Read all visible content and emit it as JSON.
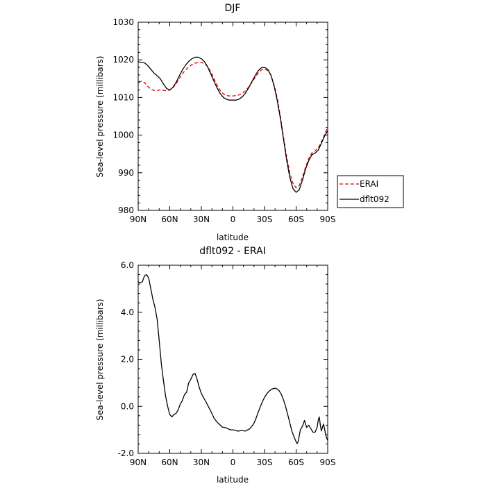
{
  "chart_data": [
    {
      "type": "line",
      "title": "DJF",
      "xlabel": "latitude",
      "ylabel": "Sea-level pressure (millibars)",
      "x_ticks": [
        "90N",
        "60N",
        "30N",
        "0",
        "30S",
        "60S",
        "90S"
      ],
      "xlim": [
        -90,
        90
      ],
      "ylim": [
        980,
        1030
      ],
      "y_ticks": [
        "980",
        "990",
        "1000",
        "1010",
        "1020",
        "1030"
      ],
      "grid": false,
      "legend_position": "right",
      "series": [
        {
          "name": "ERAI",
          "style": "dashed",
          "color": "#e00000",
          "points": [
            [
              -90,
              1014.2
            ],
            [
              -87,
              1014.3
            ],
            [
              -84,
              1014.0
            ],
            [
              -81,
              1013.0
            ],
            [
              -78,
              1012.2
            ],
            [
              -75,
              1011.9
            ],
            [
              -72,
              1011.9
            ],
            [
              -69,
              1012.0
            ],
            [
              -66,
              1011.9
            ],
            [
              -63,
              1011.8
            ],
            [
              -60,
              1012.0
            ],
            [
              -57,
              1012.6
            ],
            [
              -54,
              1013.6
            ],
            [
              -51,
              1015.0
            ],
            [
              -48,
              1016.3
            ],
            [
              -45,
              1017.3
            ],
            [
              -42,
              1018.1
            ],
            [
              -39,
              1018.7
            ],
            [
              -36,
              1019.1
            ],
            [
              -33,
              1019.3
            ],
            [
              -30,
              1019.3
            ],
            [
              -27,
              1019.0
            ],
            [
              -24,
              1018.2
            ],
            [
              -21,
              1016.8
            ],
            [
              -18,
              1015.0
            ],
            [
              -15,
              1013.2
            ],
            [
              -12,
              1011.8
            ],
            [
              -9,
              1010.9
            ],
            [
              -6,
              1010.5
            ],
            [
              -3,
              1010.4
            ],
            [
              0,
              1010.4
            ],
            [
              3,
              1010.5
            ],
            [
              6,
              1010.7
            ],
            [
              9,
              1011.1
            ],
            [
              12,
              1011.8
            ],
            [
              15,
              1012.8
            ],
            [
              18,
              1014.0
            ],
            [
              21,
              1015.3
            ],
            [
              24,
              1016.5
            ],
            [
              27,
              1017.3
            ],
            [
              30,
              1017.5
            ],
            [
              33,
              1017.2
            ],
            [
              36,
              1016.0
            ],
            [
              39,
              1013.5
            ],
            [
              42,
              1010.0
            ],
            [
              45,
              1005.0
            ],
            [
              48,
              999.5
            ],
            [
              51,
              994.2
            ],
            [
              54,
              990.0
            ],
            [
              57,
              987.2
            ],
            [
              60,
              986.0
            ],
            [
              63,
              986.6
            ],
            [
              66,
              988.8
            ],
            [
              69,
              991.5
            ],
            [
              72,
              993.8
            ],
            [
              75,
              995.3
            ],
            [
              78,
              995.8
            ],
            [
              81,
              996.6
            ],
            [
              84,
              998.2
            ],
            [
              87,
              1000.0
            ],
            [
              90,
              1002.2
            ]
          ]
        },
        {
          "name": "dflt092",
          "style": "solid",
          "color": "#000000",
          "points": [
            [
              -90,
              1019.5
            ],
            [
              -87,
              1019.3
            ],
            [
              -84,
              1019.2
            ],
            [
              -81,
              1018.5
            ],
            [
              -78,
              1017.5
            ],
            [
              -75,
              1016.5
            ],
            [
              -72,
              1015.8
            ],
            [
              -69,
              1015.0
            ],
            [
              -66,
              1013.6
            ],
            [
              -63,
              1012.4
            ],
            [
              -60,
              1012.0
            ],
            [
              -57,
              1012.7
            ],
            [
              -54,
              1014.0
            ],
            [
              -51,
              1015.7
            ],
            [
              -48,
              1017.3
            ],
            [
              -45,
              1018.6
            ],
            [
              -42,
              1019.6
            ],
            [
              -39,
              1020.3
            ],
            [
              -36,
              1020.7
            ],
            [
              -33,
              1020.7
            ],
            [
              -30,
              1020.3
            ],
            [
              -27,
              1019.5
            ],
            [
              -24,
              1018.1
            ],
            [
              -21,
              1016.3
            ],
            [
              -18,
              1014.3
            ],
            [
              -15,
              1012.5
            ],
            [
              -12,
              1011.0
            ],
            [
              -9,
              1010.0
            ],
            [
              -6,
              1009.5
            ],
            [
              -3,
              1009.3
            ],
            [
              0,
              1009.3
            ],
            [
              3,
              1009.3
            ],
            [
              6,
              1009.6
            ],
            [
              9,
              1010.2
            ],
            [
              12,
              1011.2
            ],
            [
              15,
              1012.6
            ],
            [
              18,
              1014.2
            ],
            [
              21,
              1015.8
            ],
            [
              24,
              1017.1
            ],
            [
              27,
              1017.9
            ],
            [
              30,
              1018.0
            ],
            [
              33,
              1017.5
            ],
            [
              36,
              1016.0
            ],
            [
              39,
              1013.2
            ],
            [
              42,
              1009.3
            ],
            [
              45,
              1004.5
            ],
            [
              48,
              999.0
            ],
            [
              51,
              993.3
            ],
            [
              54,
              988.8
            ],
            [
              57,
              985.8
            ],
            [
              60,
              984.8
            ],
            [
              63,
              985.5
            ],
            [
              66,
              988.0
            ],
            [
              69,
              991.0
            ],
            [
              72,
              993.2
            ],
            [
              75,
              994.8
            ],
            [
              78,
              995.2
            ],
            [
              81,
              996.0
            ],
            [
              84,
              997.8
            ],
            [
              87,
              999.7
            ],
            [
              90,
              1001.2
            ]
          ]
        }
      ]
    },
    {
      "type": "line",
      "title": "dflt092 - ERAI",
      "xlabel": "latitude",
      "ylabel": "Sea-level pressure (millibars)",
      "x_ticks": [
        "90N",
        "60N",
        "30N",
        "0",
        "30S",
        "60S",
        "90S"
      ],
      "xlim": [
        -90,
        90
      ],
      "ylim": [
        -2.0,
        6.0
      ],
      "y_ticks": [
        "-2.0",
        "0.0",
        "2.0",
        "4.0",
        "6.0"
      ],
      "grid": false,
      "series": [
        {
          "name": "dflt092 - ERAI",
          "style": "solid",
          "color": "#000000",
          "points": [
            [
              -90,
              5.3
            ],
            [
              -88,
              5.25
            ],
            [
              -86,
              5.3
            ],
            [
              -84,
              5.55
            ],
            [
              -82,
              5.6
            ],
            [
              -80,
              5.45
            ],
            [
              -78,
              5.0
            ],
            [
              -76,
              4.55
            ],
            [
              -74,
              4.2
            ],
            [
              -72,
              3.7
            ],
            [
              -70,
              2.8
            ],
            [
              -68,
              1.8
            ],
            [
              -66,
              1.1
            ],
            [
              -64,
              0.45
            ],
            [
              -62,
              0.0
            ],
            [
              -60,
              -0.35
            ],
            [
              -58,
              -0.45
            ],
            [
              -56,
              -0.35
            ],
            [
              -54,
              -0.3
            ],
            [
              -52,
              -0.15
            ],
            [
              -50,
              0.1
            ],
            [
              -48,
              0.25
            ],
            [
              -46,
              0.5
            ],
            [
              -44,
              0.6
            ],
            [
              -42,
              1.0
            ],
            [
              -40,
              1.15
            ],
            [
              -38,
              1.35
            ],
            [
              -36,
              1.4
            ],
            [
              -34,
              1.15
            ],
            [
              -32,
              0.8
            ],
            [
              -30,
              0.55
            ],
            [
              -28,
              0.38
            ],
            [
              -26,
              0.22
            ],
            [
              -24,
              0.05
            ],
            [
              -22,
              -0.12
            ],
            [
              -20,
              -0.3
            ],
            [
              -18,
              -0.5
            ],
            [
              -16,
              -0.62
            ],
            [
              -14,
              -0.72
            ],
            [
              -12,
              -0.8
            ],
            [
              -10,
              -0.88
            ],
            [
              -8,
              -0.9
            ],
            [
              -6,
              -0.92
            ],
            [
              -4,
              -0.97
            ],
            [
              -2,
              -1.0
            ],
            [
              0,
              -1.0
            ],
            [
              2,
              -1.02
            ],
            [
              4,
              -1.05
            ],
            [
              6,
              -1.05
            ],
            [
              8,
              -1.03
            ],
            [
              10,
              -1.04
            ],
            [
              12,
              -1.05
            ],
            [
              14,
              -1.0
            ],
            [
              16,
              -0.95
            ],
            [
              18,
              -0.85
            ],
            [
              20,
              -0.72
            ],
            [
              22,
              -0.5
            ],
            [
              24,
              -0.25
            ],
            [
              26,
              -0.02
            ],
            [
              28,
              0.2
            ],
            [
              30,
              0.38
            ],
            [
              32,
              0.52
            ],
            [
              34,
              0.63
            ],
            [
              36,
              0.7
            ],
            [
              38,
              0.75
            ],
            [
              40,
              0.77
            ],
            [
              42,
              0.74
            ],
            [
              44,
              0.66
            ],
            [
              46,
              0.5
            ],
            [
              48,
              0.28
            ],
            [
              50,
              0.0
            ],
            [
              52,
              -0.35
            ],
            [
              54,
              -0.7
            ],
            [
              56,
              -1.05
            ],
            [
              58,
              -1.3
            ],
            [
              60,
              -1.5
            ],
            [
              61,
              -1.58
            ],
            [
              62,
              -1.5
            ],
            [
              64,
              -1.0
            ],
            [
              66,
              -0.85
            ],
            [
              68,
              -0.6
            ],
            [
              69,
              -0.75
            ],
            [
              70,
              -0.9
            ],
            [
              72,
              -0.8
            ],
            [
              74,
              -0.95
            ],
            [
              76,
              -1.1
            ],
            [
              78,
              -1.1
            ],
            [
              80,
              -0.9
            ],
            [
              81,
              -0.6
            ],
            [
              82,
              -0.45
            ],
            [
              83,
              -0.8
            ],
            [
              84,
              -1.05
            ],
            [
              85,
              -0.9
            ],
            [
              86,
              -0.75
            ],
            [
              87,
              -0.95
            ],
            [
              88,
              -1.2
            ],
            [
              89,
              -1.35
            ],
            [
              90,
              -1.45
            ]
          ]
        }
      ]
    }
  ]
}
